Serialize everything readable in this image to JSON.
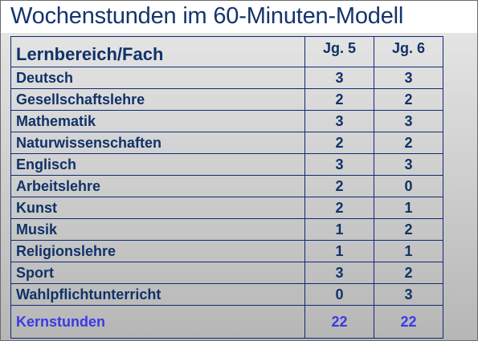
{
  "title": "Wochenstunden im 60-Minuten-Modell",
  "table": {
    "headers": [
      "Lernbereich/Fach",
      "Jg. 5",
      "Jg. 6"
    ],
    "rows": [
      {
        "fach": "Deutsch",
        "jg5": "3",
        "jg6": "3"
      },
      {
        "fach": "Gesellschaftslehre",
        "jg5": "2",
        "jg6": "2"
      },
      {
        "fach": "Mathematik",
        "jg5": "3",
        "jg6": "3"
      },
      {
        "fach": "Naturwissenschaften",
        "jg5": "2",
        "jg6": "2"
      },
      {
        "fach": "Englisch",
        "jg5": "3",
        "jg6": "3"
      },
      {
        "fach": "Arbeitslehre",
        "jg5": "2",
        "jg6": "0"
      },
      {
        "fach": "Kunst",
        "jg5": "2",
        "jg6": "1"
      },
      {
        "fach": "Musik",
        "jg5": "1",
        "jg6": "2"
      },
      {
        "fach": "Religionslehre",
        "jg5": "1",
        "jg6": "1"
      },
      {
        "fach": "Sport",
        "jg5": "3",
        "jg6": "2"
      },
      {
        "fach": "Wahlpflichtunterricht",
        "jg5": "0",
        "jg6": "3"
      }
    ],
    "total": {
      "fach": "Kernstunden",
      "jg5": "22",
      "jg6": "22"
    }
  },
  "colors": {
    "title": "#15346b",
    "text": "#103268",
    "border": "#0e2a72",
    "total": "#3a3ae6"
  }
}
